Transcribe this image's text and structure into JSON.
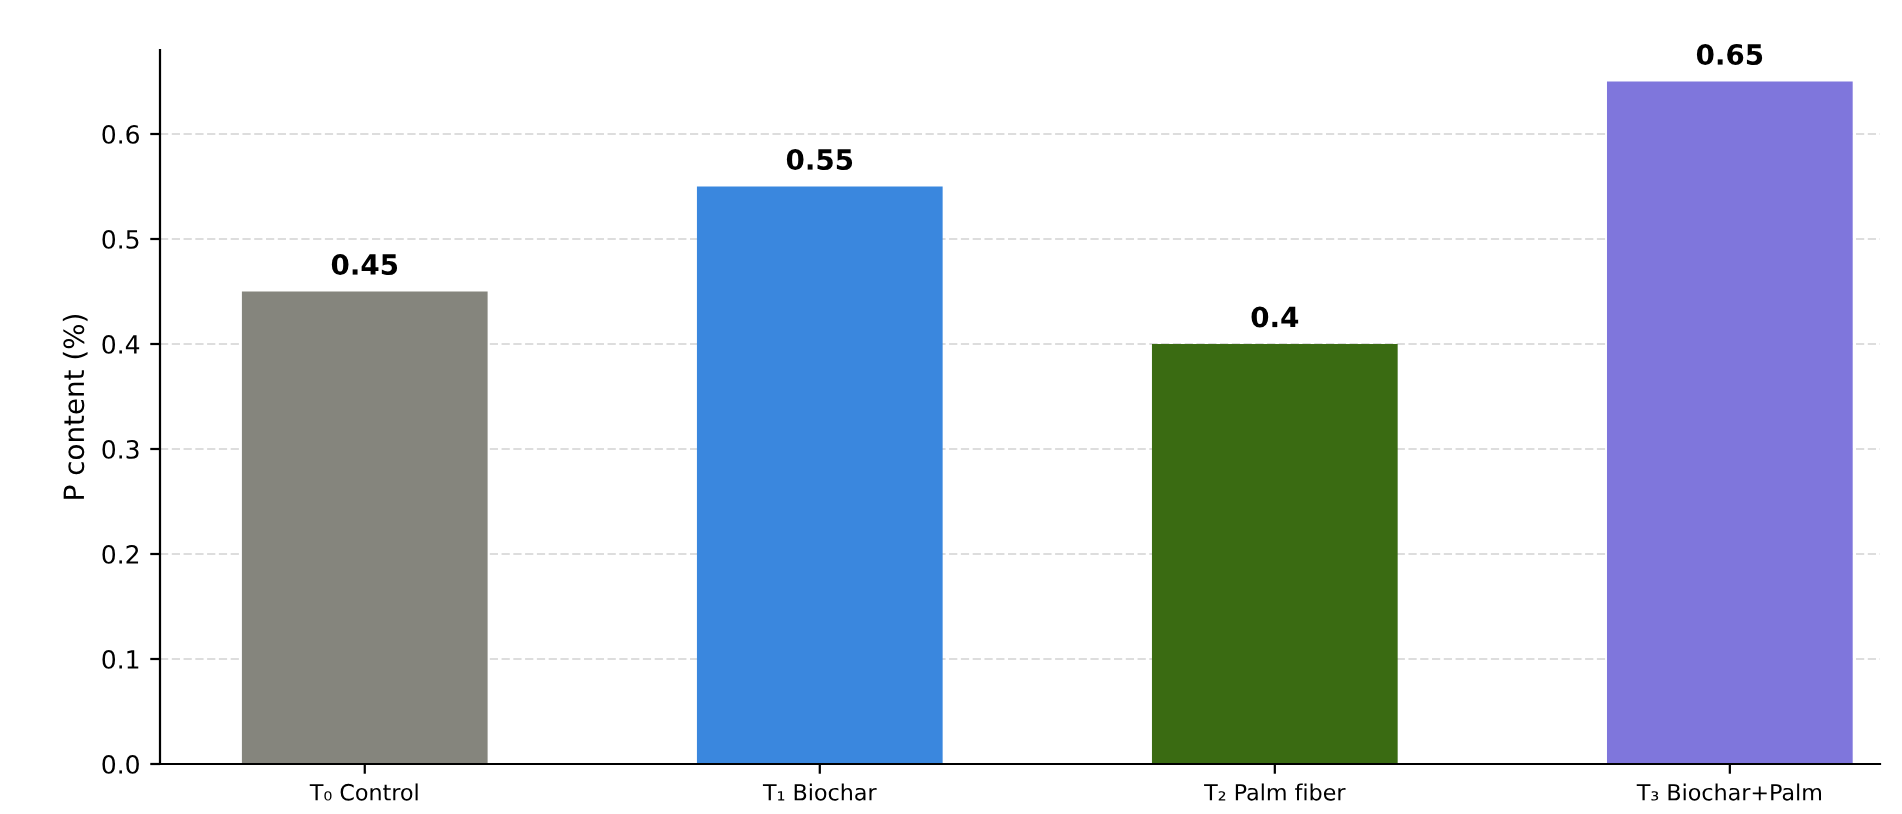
{
  "chart_data": {
    "type": "bar",
    "ylabel": "P content (%)",
    "categories": [
      "T₀ Control",
      "T₁ Biochar",
      "T₂ Palm fiber",
      "T₃ Biochar+Palm"
    ],
    "values": [
      0.45,
      0.55,
      0.4,
      0.65
    ],
    "colors": [
      "#85857d",
      "#3a87de",
      "#3a6b12",
      "#7f76dc"
    ],
    "ylim": [
      0,
      0.68
    ],
    "yticks": [
      {
        "value": 0,
        "label": "0.0"
      },
      0.1,
      0.2,
      0.3,
      0.4,
      0.5,
      0.6
    ],
    "grid": "y",
    "data_labels": true
  }
}
